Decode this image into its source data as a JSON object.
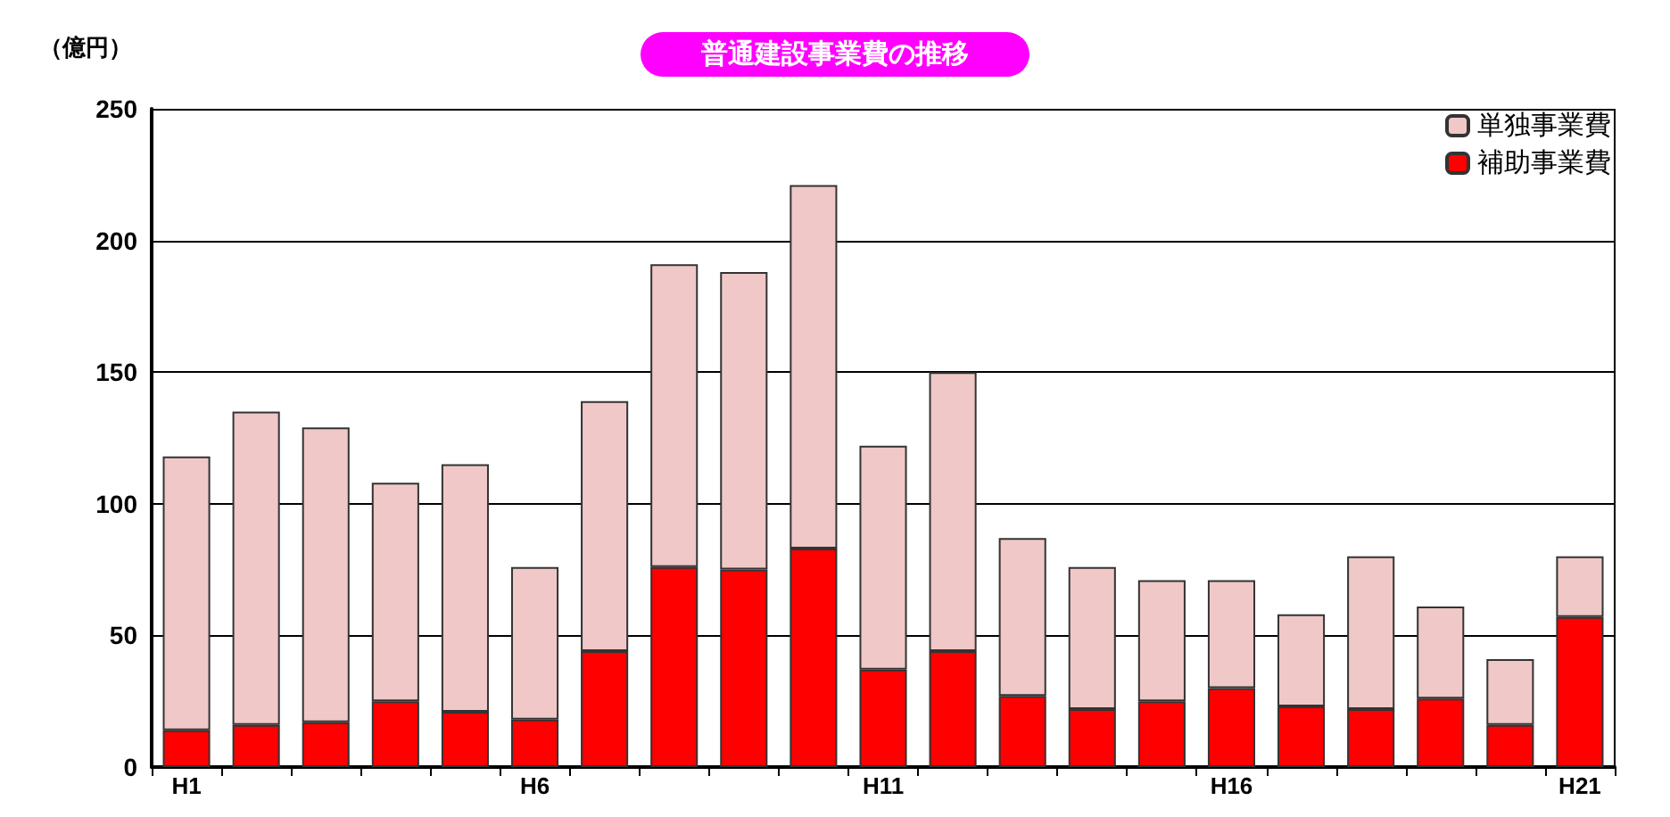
{
  "chart_data": {
    "type": "bar",
    "title": "普通建設事業費の推移",
    "ylabel": "（億円）",
    "categories": [
      "H1",
      null,
      null,
      null,
      null,
      "H6",
      null,
      null,
      null,
      null,
      "H11",
      null,
      null,
      null,
      null,
      "H16",
      null,
      null,
      null,
      null,
      "H21"
    ],
    "stacked": true,
    "series": [
      {
        "name": "補助事業費",
        "color": "#ff0000",
        "values": [
          14,
          16,
          17,
          25,
          21,
          18,
          44,
          76,
          75,
          83,
          37,
          44,
          27,
          22,
          25,
          30,
          23,
          22,
          26,
          16,
          57
        ]
      },
      {
        "name": "単独事業費",
        "color": "#f0c8c8",
        "values": [
          104,
          119,
          112,
          83,
          94,
          58,
          95,
          115,
          113,
          138,
          85,
          106,
          60,
          54,
          46,
          41,
          35,
          58,
          35,
          25,
          23
        ]
      }
    ],
    "ylim": [
      0,
      250
    ],
    "yticks": [
      0,
      50,
      100,
      150,
      200,
      250
    ],
    "grid": "y",
    "legend": "top right"
  }
}
